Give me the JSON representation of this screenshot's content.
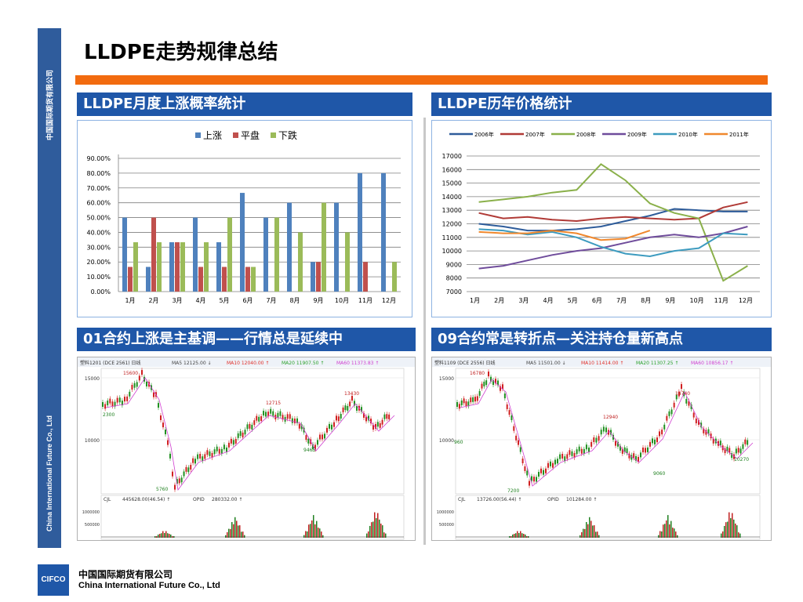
{
  "slide": {
    "title": "LLDPE走势规律总结",
    "sidebar_cn": "中国国际期货有限公司",
    "sidebar_en": "China International Future Co., Ltd",
    "footer": {
      "logo": "CIFCO",
      "company_cn": "中国国际期货有限公司",
      "company_en": "China International Future Co., Ltd"
    },
    "accent_color": "#f26b0f",
    "brand_color": "#1f57a8"
  },
  "sections": [
    {
      "heading": "LLDPE月度上涨概率统计"
    },
    {
      "heading": "LLDPE历年价格统计"
    },
    {
      "heading": "01合约上涨是主基调——行情总是延续中"
    },
    {
      "heading": "09合约常是转折点—关注持仓量新高点"
    }
  ],
  "chart_data": [
    {
      "type": "bar",
      "categories": [
        "1月",
        "2月",
        "3月",
        "4月",
        "5月",
        "6月",
        "7月",
        "8月",
        "9月",
        "10月",
        "11月",
        "12月"
      ],
      "series": [
        {
          "name": "上涨",
          "color": "#4f81bd",
          "values": [
            50,
            16.67,
            33.33,
            50,
            33.33,
            66.67,
            50,
            60,
            20,
            60,
            80,
            80
          ]
        },
        {
          "name": "平盘",
          "color": "#c0504d",
          "values": [
            16.67,
            50,
            33.33,
            16.67,
            16.67,
            16.67,
            0,
            0,
            20,
            0,
            20,
            0
          ]
        },
        {
          "name": "下跌",
          "color": "#9bbb59",
          "values": [
            33.33,
            33.33,
            33.33,
            33.33,
            50,
            16.67,
            50,
            40,
            60,
            40,
            0,
            20
          ]
        }
      ],
      "ytick_labels": [
        "0.00%",
        "10.00%",
        "20.00%",
        "30.00%",
        "40.00%",
        "50.00%",
        "60.00%",
        "70.00%",
        "80.00%",
        "90.00%"
      ],
      "ylim": [
        0,
        90
      ],
      "legend": "top"
    },
    {
      "type": "line",
      "categories": [
        "1月",
        "2月",
        "3月",
        "4月",
        "5月",
        "6月",
        "7月",
        "8月",
        "9月",
        "10月",
        "11月",
        "12月"
      ],
      "ylim": [
        7000,
        17000
      ],
      "yticks": [
        7000,
        8000,
        9000,
        10000,
        11000,
        12000,
        13000,
        14000,
        15000,
        16000,
        17000
      ],
      "legend": "top",
      "series": [
        {
          "name": "2006年",
          "color": "#2e5c9a",
          "values": [
            12000,
            11800,
            11500,
            11500,
            11600,
            11800,
            12200,
            12600,
            13100,
            13000,
            12900,
            12900
          ]
        },
        {
          "name": "2007年",
          "color": "#b03a36",
          "values": [
            12800,
            12400,
            12500,
            12300,
            12200,
            12400,
            12500,
            12400,
            12300,
            12400,
            13200,
            13600
          ]
        },
        {
          "name": "2008年",
          "color": "#8ab04a",
          "values": [
            13600,
            13800,
            14000,
            14300,
            14500,
            16400,
            15200,
            13500,
            12800,
            12400,
            7800,
            8900
          ]
        },
        {
          "name": "2009年",
          "color": "#6f4c9b",
          "values": [
            8700,
            8900,
            9300,
            9700,
            10000,
            10200,
            10600,
            11000,
            11200,
            11000,
            11300,
            11800
          ]
        },
        {
          "name": "2010年",
          "color": "#3d9bbf",
          "values": [
            11600,
            11500,
            11200,
            11400,
            11000,
            10300,
            9800,
            9600,
            10000,
            10200,
            11300,
            11200
          ]
        },
        {
          "name": "2011年",
          "color": "#f0882d",
          "values": [
            11400,
            11300,
            11300,
            11500,
            11300,
            10800,
            10900,
            11500,
            null,
            null,
            null,
            null
          ]
        }
      ]
    }
  ],
  "kline_panels": [
    {
      "header_left": "塑料1201 (DCE 2561) 日线",
      "header_ma": [
        "MA5 12125.00 ↓",
        "MA10 12040.00 ↑",
        "MA20 11907.50 ↑",
        "MA60 11373.83 ↑"
      ],
      "yticks": [
        "15000",
        "10000"
      ],
      "annotations": [
        "15600",
        "12715",
        "13430",
        "9465",
        "5760",
        "2300"
      ],
      "volume_header": [
        "CJL",
        "445628.00(46.54) ↑",
        "OPID",
        "280332.00 ↑"
      ],
      "volume_yticks": [
        "1000000",
        "500000"
      ]
    },
    {
      "header_left": "塑料1109 (DCE 2556) 日线",
      "header_ma": [
        "MA5 11501.00 ↓",
        "MA10 11414.00 ↑",
        "MA20 11307.25 ↑",
        "MA60 10856.17 ↑"
      ],
      "yticks": [
        "15000",
        "10000"
      ],
      "annotations": [
        "16780",
        "12940",
        "14740",
        "9060",
        "10270",
        "7200",
        "960"
      ],
      "volume_header": [
        "CJL",
        "13726.00(56.44) ↑",
        "OPID",
        "101284.00 ↑"
      ],
      "volume_yticks": [
        "1000000",
        "500000"
      ]
    }
  ]
}
